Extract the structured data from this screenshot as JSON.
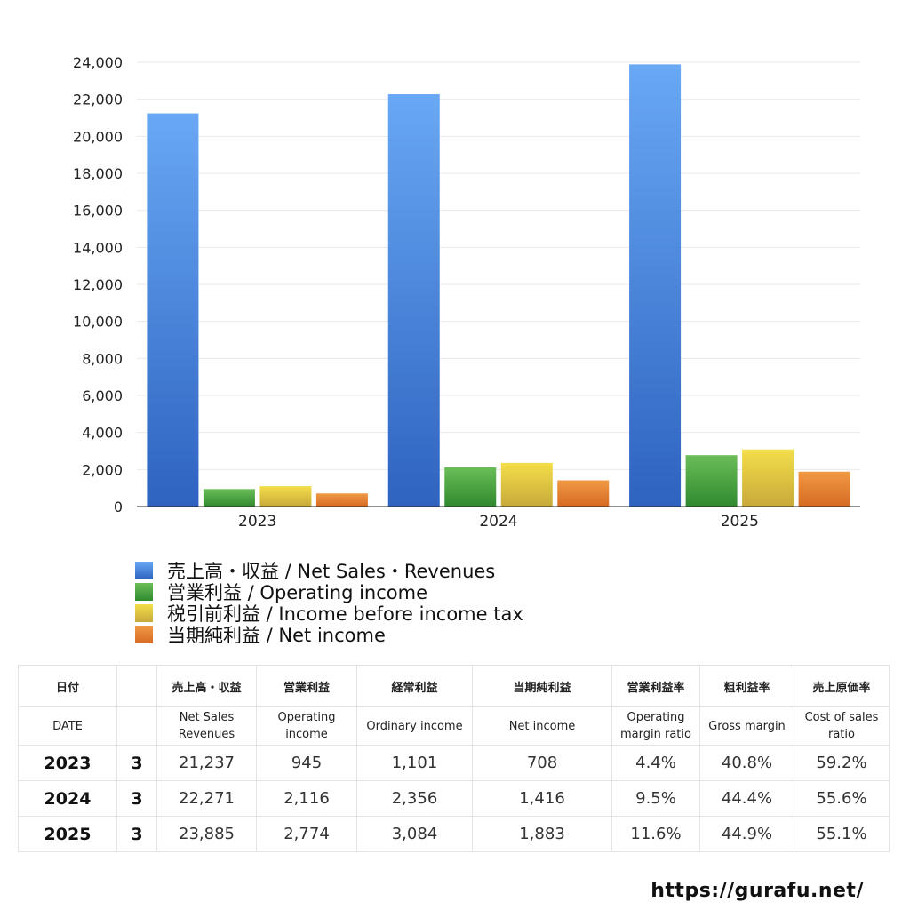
{
  "chart_data": {
    "type": "bar",
    "categories": [
      "2023",
      "2024",
      "2025"
    ],
    "ylim": [
      0,
      24000
    ],
    "yticks": [
      "0",
      "2,000",
      "4,000",
      "6,000",
      "8,000",
      "10,000",
      "12,000",
      "14,000",
      "16,000",
      "18,000",
      "20,000",
      "22,000",
      "24,000"
    ],
    "ytick_values": [
      0,
      2000,
      4000,
      6000,
      8000,
      10000,
      12000,
      14000,
      16000,
      18000,
      20000,
      22000,
      24000
    ],
    "grid": true,
    "series": [
      {
        "name": "売上高・収益 / Net Sales・Revenues",
        "color_top": "#68a8f4",
        "color_bottom": "#2e63c0",
        "values": [
          21237,
          22271,
          23885
        ]
      },
      {
        "name": "営業利益 / Operating income",
        "color_top": "#6bbd58",
        "color_bottom": "#2f8a2e",
        "values": [
          945,
          2116,
          2774
        ]
      },
      {
        "name": "税引前利益 / Income before income tax",
        "color_top": "#f3de4a",
        "color_bottom": "#c8a93a",
        "values": [
          1101,
          2356,
          3084
        ]
      },
      {
        "name": "当期純利益 / Net income",
        "color_top": "#f09a45",
        "color_bottom": "#d66a22",
        "values": [
          708,
          1416,
          1883
        ]
      }
    ]
  },
  "table": {
    "header_jp": [
      "日付",
      "",
      "売上高・収益",
      "営業利益",
      "経常利益",
      "当期純利益",
      "営業利益率",
      "粗利益率",
      "売上原価率"
    ],
    "header_en": [
      "DATE",
      "",
      "Net Sales Revenues",
      "Operating income",
      "Ordinary income",
      "Net income",
      "Operating margin ratio",
      "Gross margin",
      "Cost of sales ratio"
    ],
    "rows": [
      [
        "2023",
        "3",
        "21,237",
        "945",
        "1,101",
        "708",
        "4.4%",
        "40.8%",
        "59.2%"
      ],
      [
        "2024",
        "3",
        "22,271",
        "2,116",
        "2,356",
        "1,416",
        "9.5%",
        "44.4%",
        "55.6%"
      ],
      [
        "2025",
        "3",
        "23,885",
        "2,774",
        "3,084",
        "1,883",
        "11.6%",
        "44.9%",
        "55.1%"
      ]
    ]
  },
  "site_url": "https://gurafu.net/"
}
